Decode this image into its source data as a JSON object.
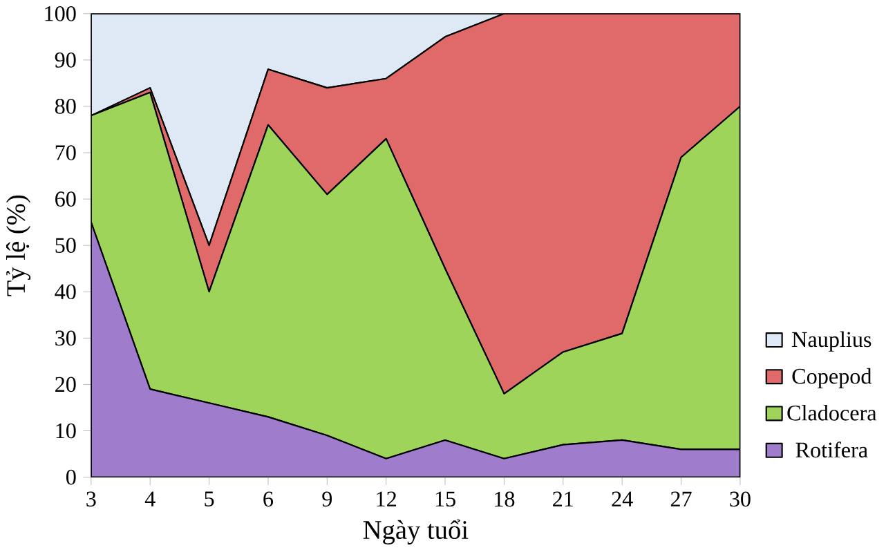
{
  "chart_data": {
    "type": "area",
    "stacked": true,
    "xlabel": "Ngày tuổi",
    "ylabel": "Tỷ lệ (%)",
    "categories": [
      "3",
      "4",
      "5",
      "6",
      "9",
      "12",
      "15",
      "18",
      "21",
      "24",
      "27",
      "30"
    ],
    "series": [
      {
        "name": "Rotifera",
        "color": "#a07ccc",
        "values": [
          55,
          19,
          16,
          13,
          9,
          4,
          8,
          4,
          7,
          8,
          6,
          6
        ]
      },
      {
        "name": "Cladocera",
        "color": "#9fd45a",
        "values": [
          23,
          64,
          24,
          63,
          52,
          69,
          37,
          14,
          20,
          23,
          63,
          74
        ]
      },
      {
        "name": "Copepod",
        "color": "#e06a6a",
        "values": [
          0,
          1,
          10,
          12,
          23,
          13,
          50,
          82,
          73,
          69,
          31,
          20
        ]
      },
      {
        "name": "Nauplius",
        "color": "#dfe9f5",
        "values": [
          22,
          16,
          50,
          12,
          16,
          14,
          5,
          0,
          0,
          0,
          0,
          0
        ]
      }
    ],
    "ylim": [
      0,
      100
    ],
    "yticks": [
      0,
      10,
      20,
      30,
      40,
      50,
      60,
      70,
      80,
      90,
      100
    ],
    "legend": "right"
  }
}
